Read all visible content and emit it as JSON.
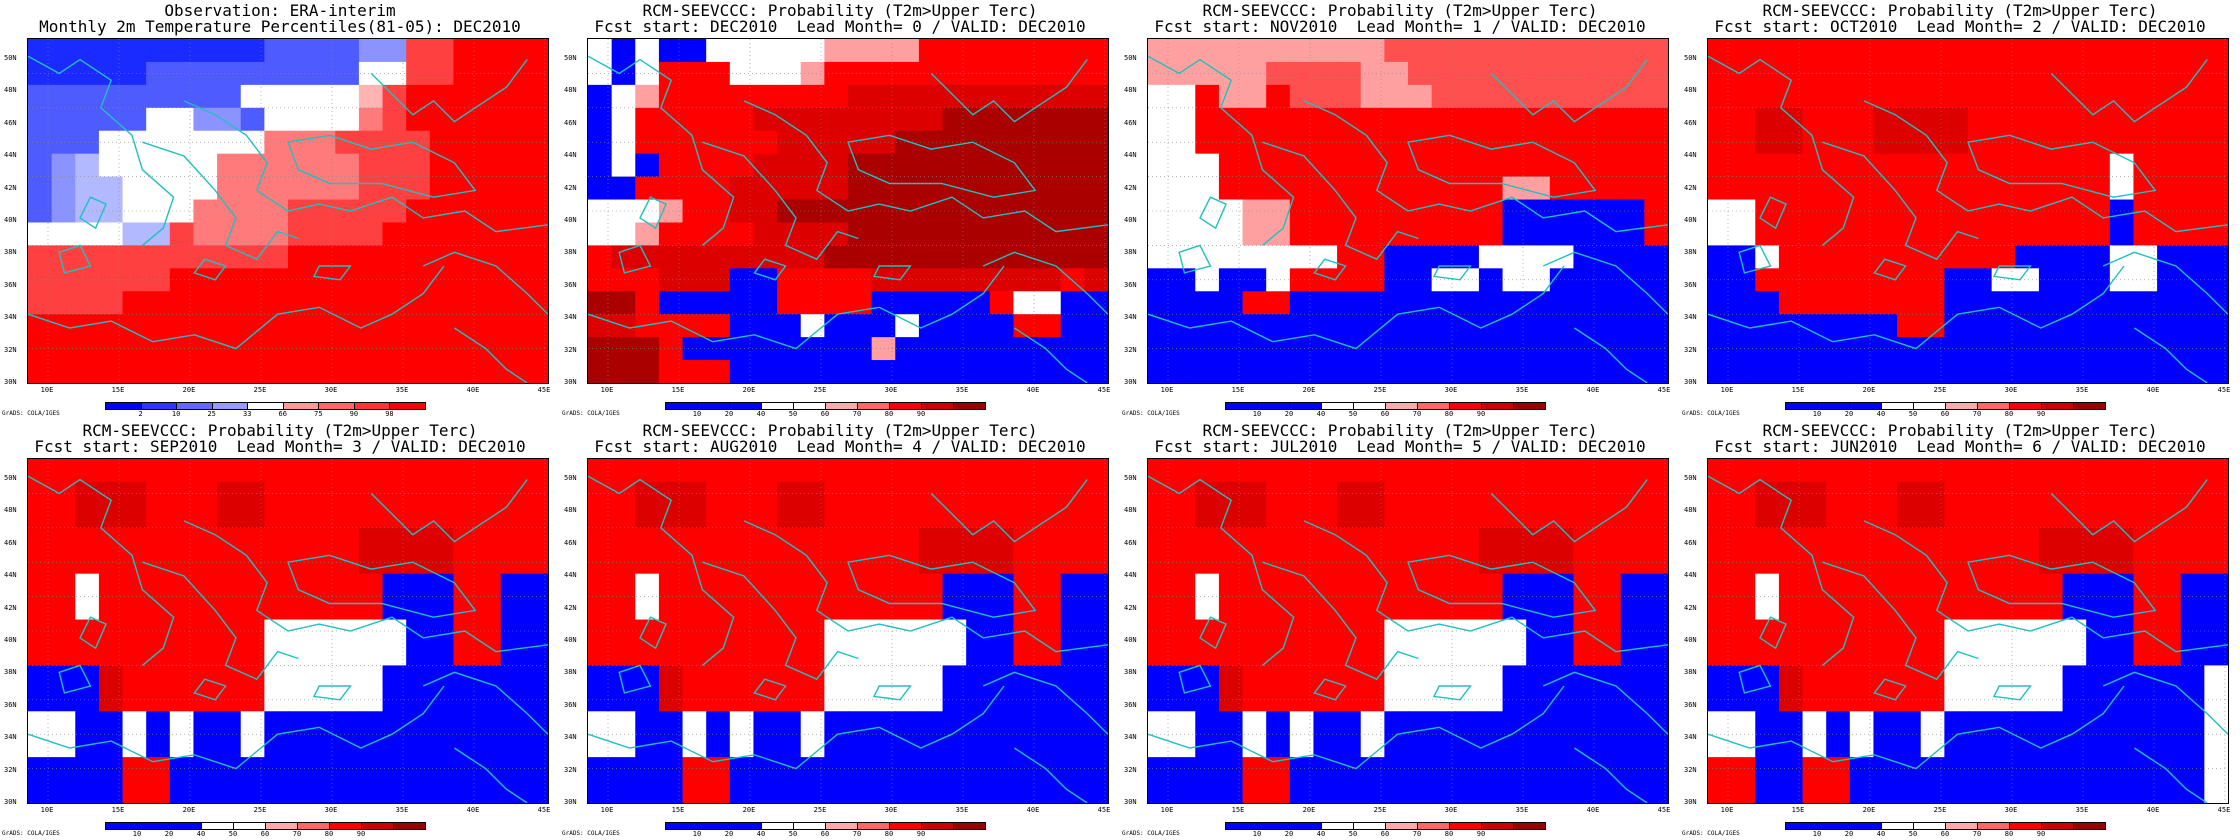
{
  "panels": [
    {
      "title1": "Observation: ERA-interim",
      "title2": "Monthly 2m Temperature Percentiles(81-05): DEC2010",
      "kind": "obs"
    },
    {
      "title1": "RCM-SEEVCCC: Probability (T2m>Upper Terc)",
      "title2": "Fcst start: DEC2010  Lead Month= 0 / VALID: DEC2010",
      "kind": "prob"
    },
    {
      "title1": "RCM-SEEVCCC: Probability (T2m>Upper Terc)",
      "title2": "Fcst start: NOV2010  Lead Month= 1 / VALID: DEC2010",
      "kind": "prob"
    },
    {
      "title1": "RCM-SEEVCCC: Probability (T2m>Upper Terc)",
      "title2": "Fcst start: OCT2010  Lead Month= 2 / VALID: DEC2010",
      "kind": "prob"
    },
    {
      "title1": "RCM-SEEVCCC: Probability (T2m>Upper Terc)",
      "title2": "Fcst start: SEP2010  Lead Month= 3 / VALID: DEC2010",
      "kind": "prob"
    },
    {
      "title1": "RCM-SEEVCCC: Probability (T2m>Upper Terc)",
      "title2": "Fcst start: AUG2010  Lead Month= 4 / VALID: DEC2010",
      "kind": "prob"
    },
    {
      "title1": "RCM-SEEVCCC: Probability (T2m>Upper Terc)",
      "title2": "Fcst start: JUL2010  Lead Month= 5 / VALID: DEC2010",
      "kind": "prob"
    },
    {
      "title1": "RCM-SEEVCCC: Probability (T2m>Upper Terc)",
      "title2": "Fcst start: JUN2010  Lead Month= 6 / VALID: DEC2010",
      "kind": "prob"
    }
  ],
  "lat_labels": [
    "50N",
    "48N",
    "46N",
    "44N",
    "42N",
    "40N",
    "38N",
    "36N",
    "34N",
    "32N",
    "30N"
  ],
  "lon_labels": [
    "10E",
    "15E",
    "20E",
    "25E",
    "30E",
    "35E",
    "40E",
    "45E"
  ],
  "obs_colorbar": {
    "labels": [
      "2",
      "10",
      "25",
      "33",
      "66",
      "75",
      "90",
      "98"
    ],
    "colors": [
      "#0000ff",
      "#3333ff",
      "#6666ff",
      "#9999ff",
      "#ffffff",
      "#ff9999",
      "#ff6666",
      "#ff3333",
      "#ff0000"
    ]
  },
  "prob_colorbar": {
    "labels": [
      "10",
      "20",
      "40",
      "50",
      "60",
      "70",
      "80",
      "90"
    ],
    "colors": [
      "#0000ff",
      "#0000ff",
      "#0000ff",
      "#ffffff",
      "#ffffff",
      "#ffaaaa",
      "#ff6666",
      "#ff0000",
      "#cc0000",
      "#990000"
    ]
  },
  "credit": "GrADS: COLA/IGES",
  "palette": {
    "obs": [
      "#1a2bff",
      "#4d5bff",
      "#8a93ff",
      "#b3b9ff",
      "#ffffff",
      "#ffb3b3",
      "#ff7a7a",
      "#ff4040",
      "#ff0000"
    ],
    "prob": [
      "#0000ff",
      "#ffffff",
      "#ffa0a0",
      "#ff5050",
      "#ff0000",
      "#dd0000",
      "#aa0000"
    ],
    "coast": "#20c0c0"
  },
  "cells": {
    "obs": [
      "0000000000111122778888",
      "0000011111111144778888",
      "1111111114444457888888",
      "1111144221444467888888",
      "1114444444666777788888",
      "1234444466666677788888",
      "1233444466666677788888",
      "1233444666677777888888",
      "4444337666677778888888",
      "7777777777788888888888",
      "7777778888888888888888",
      "7777888888888888888888",
      "8888888888888888888888",
      "8888888888888888888888",
      "8888888888888888888888"
    ],
    "p0": [
      "1010011111222244444444",
      "1014441112444444444444",
      "0124444444455555555555",
      "0144444555555556666666",
      "0144444455555666666666",
      "0104444555566666666666",
      "0044445555566666666666",
      "1112445566666666666666",
      "1124444555566666666666",
      "4555555555666666666666",
      "4445550044445555555545",
      "6640000044440000041100",
      "5544440001000100004400",
      "6664000000002000000000",
      "6664440000000000000000"
    ],
    "p1": [
      "2222222222333333333333",
      "2222233332233333333333",
      "1142243332223333333333",
      "1144444444444444444444",
      "1144444444444444444444",
      "1114444444444444444444",
      "1114444444444442244444",
      "1111224444444440000004",
      "1111224444444440000004",
      "1111111144000011110000",
      "0010014444001101100000",
      "0000440000000000000000",
      "0000000000000000000000",
      "0000000000000000000000",
      "0000000000000000000000"
    ],
    "p2": [
      "4444444444444444444444",
      "4444444444444444444444",
      "4444444444444444444444",
      "4455444555544444444444",
      "4455444555544444444444",
      "4444444444444444414444",
      "4444444444444444414444",
      "1144444444444444404444",
      "1144444444444444404444",
      "0014444444444000011000",
      "0044444444001100011000",
      "0004444444000000000000",
      "0000000044000000000000",
      "0000000000000000000000",
      "0000000000000000000000"
    ],
    "p3": [
      "4444444444444444444444",
      "4455544455444444444444",
      "4455544455444444444444",
      "4444444444444455554444",
      "4444444444444455554444",
      "4414444444444440004400",
      "4414444444444440004400",
      "4444444444111111004400",
      "4444444444111111004400",
      "0005444444111110000000",
      "0005444444111110000000",
      "1100101001000000000000",
      "1100101001000000000000",
      "0000440000000000000000",
      "0000440000000000000000"
    ],
    "p4": [
      "4444444444444444444444",
      "4455544455444444444444",
      "4455544455444444444444",
      "4444444444444455554444",
      "4444444444444455554444",
      "4414444444444440004400",
      "4414444444444440004400",
      "4444444444111111004400",
      "4444444444111111004400",
      "0005444444111110000000",
      "0005444444111110000000",
      "1100101001000000000000",
      "1100101001000000000000",
      "0000440000000000000000",
      "0000440000000000000000"
    ],
    "p5": [
      "4444444444444444444444",
      "4455544455444444444444",
      "4455544455444444444444",
      "4444444444444455554444",
      "4444444444444455554444",
      "4414444444444440004400",
      "4414444444444440004400",
      "4444444444111111004400",
      "4444444444111111004400",
      "0005444444111110000000",
      "0005444444111110000000",
      "1100101001000000000000",
      "1100101001000000000000",
      "0000440000000000000000",
      "0000440000000000000000"
    ],
    "p6": [
      "4444444444444444444444",
      "4455544455444444444444",
      "4455544455444444444444",
      "4444444444444455554444",
      "4444444444444455554444",
      "4414444444444440004400",
      "4414444444444440004400",
      "4444444444111111004400",
      "4444444444111111004400",
      "0005444444111110000001",
      "0005444444111110000001",
      "1100101001000000000001",
      "1100101001000000000001",
      "4400440000000000000001",
      "4400440000000000000001"
    ]
  }
}
